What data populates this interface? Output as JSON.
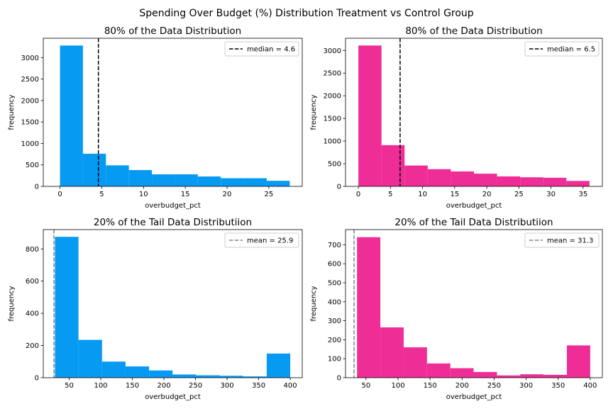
{
  "figure": {
    "suptitle": "Spending Over Budget (%) Distribution Treatment vs Control Group"
  },
  "chart_data": [
    {
      "type": "bar",
      "title": "80% of the Data Distribution",
      "xlabel": "overbudget_pct",
      "ylabel": "frequency",
      "color": "#069AF3",
      "bin_edges": [
        0,
        2.75,
        5.5,
        8.25,
        11.0,
        13.75,
        16.5,
        19.25,
        22.0,
        24.75,
        27.5
      ],
      "values": [
        3280,
        760,
        490,
        380,
        280,
        280,
        230,
        190,
        190,
        130
      ],
      "xlim": [
        -2,
        29
      ],
      "ylim": [
        0,
        3450
      ],
      "xticks": [
        "0",
        "5",
        "10",
        "15",
        "20",
        "25"
      ],
      "yticks": [
        "0",
        "500",
        "1000",
        "1500",
        "2000",
        "2500",
        "3000"
      ],
      "reference_line": {
        "value": 4.6,
        "style": "dashed",
        "color": "#000000",
        "label": "median = 4.6"
      },
      "legend": "top-right"
    },
    {
      "type": "bar",
      "title": "80% of the Data Distribution",
      "xlabel": "overbudget_pct",
      "ylabel": "frequency",
      "color": "#EF2D96",
      "bin_edges": [
        0,
        3.6,
        7.2,
        10.8,
        14.4,
        18.0,
        21.6,
        25.2,
        28.8,
        32.4,
        36.0
      ],
      "values": [
        3110,
        910,
        460,
        380,
        330,
        280,
        220,
        200,
        190,
        120
      ],
      "xlim": [
        -2,
        38
      ],
      "ylim": [
        0,
        3270
      ],
      "xticks": [
        "0",
        "5",
        "10",
        "15",
        "20",
        "25",
        "30",
        "35"
      ],
      "yticks": [
        "0",
        "500",
        "1000",
        "1500",
        "2000",
        "2500",
        "3000"
      ],
      "reference_line": {
        "value": 6.5,
        "style": "dashed",
        "color": "#000000",
        "label": "median = 6.5"
      },
      "legend": "top-right"
    },
    {
      "type": "bar",
      "title": "20% of the Tail Data Distributiion",
      "xlabel": "overbudget_pct",
      "ylabel": "frequency",
      "color": "#069AF3",
      "bin_edges": [
        27.5,
        64.75,
        102.0,
        139.25,
        176.5,
        213.75,
        251.0,
        288.25,
        325.5,
        362.75,
        400.0
      ],
      "values": [
        875,
        235,
        100,
        70,
        45,
        20,
        15,
        12,
        8,
        150
      ],
      "xlim": [
        9,
        419
      ],
      "ylim": [
        0,
        920
      ],
      "xticks": [
        "50",
        "100",
        "150",
        "200",
        "250",
        "300",
        "350",
        "400"
      ],
      "yticks": [
        "0",
        "200",
        "400",
        "600",
        "800"
      ],
      "reference_line": {
        "value": 25.9,
        "style": "dashed",
        "color": "#808080",
        "label": "mean = 25.9"
      },
      "legend": "top-right"
    },
    {
      "type": "bar",
      "title": "20% of the Tail Data Distributiion",
      "xlabel": "overbudget_pct",
      "ylabel": "frequency",
      "color": "#EF2D96",
      "bin_edges": [
        36.0,
        72.4,
        108.8,
        145.2,
        181.6,
        218.0,
        254.4,
        290.8,
        327.2,
        363.6,
        400.0
      ],
      "values": [
        740,
        265,
        160,
        75,
        50,
        30,
        12,
        18,
        15,
        170
      ],
      "xlim": [
        18,
        419
      ],
      "ylim": [
        0,
        780
      ],
      "xticks": [
        "50",
        "100",
        "150",
        "200",
        "250",
        "300",
        "350",
        "400"
      ],
      "yticks": [
        "0",
        "100",
        "200",
        "300",
        "400",
        "500",
        "600",
        "700"
      ],
      "reference_line": {
        "value": 31.3,
        "style": "dashed",
        "color": "#808080",
        "label": "mean = 31.3"
      },
      "legend": "top-right"
    }
  ]
}
